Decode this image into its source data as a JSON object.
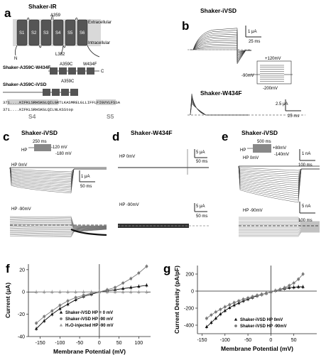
{
  "panels": {
    "a": {
      "letter": "a",
      "title": "Shaker-IR",
      "extracellular": "Extracellular",
      "intracellular": "Intracellular",
      "a359": "A359",
      "l382": "L382",
      "n": "N",
      "c": "C",
      "segments": [
        "S1",
        "S2",
        "S3",
        "S4",
        "S5",
        "S6"
      ],
      "construct1": "Shaker-A359C-W434F",
      "construct1_mut1": "A359C",
      "construct1_mut2": "W434F",
      "construct2": "Shaker-A359C-iVSD",
      "construct2_mut": "A359C",
      "seq1": "371....KIFKLSRHSKGLQILGRTLKASMRELGLLIFFLFIGVVLFSSA",
      "seq2": "371....KIFKLSRHSKGLQILNLKSStop",
      "s4": "S4",
      "s5": "S5"
    },
    "b": {
      "letter": "b",
      "trace1_title": "Shaker-iVSD",
      "trace2_title": "Shaker-W434F",
      "scale1_y": "1 μA",
      "scale1_x": "25 ms",
      "scale2_y": "2.5 μA",
      "scale2_x": "25 ms",
      "proto_top": "+120mV",
      "proto_hold": "-90mV",
      "proto_bottom": "-200mV"
    },
    "c": {
      "letter": "c",
      "title": "Shaker-iVSD",
      "proto_dur": "250 ms",
      "proto_top": "-120 mV",
      "proto_hp": "HP",
      "proto_bottom": "-180 mV",
      "hp1": "HP 0mV",
      "hp2": "HP -90mV",
      "scale_y": "1 μA",
      "scale_x": "50 ms"
    },
    "d": {
      "letter": "d",
      "title": "Shaker-W434F",
      "hp1": "HP 0mV",
      "hp2": "HP -90mV",
      "scale_y1": "5 μA",
      "scale_x1": "50 ms",
      "scale_y2": "5 μA",
      "scale_x2": "50 ms"
    },
    "e": {
      "letter": "e",
      "title": "Shaker-iVSD",
      "proto_dur": "500 ms",
      "proto_top": "+80mV",
      "proto_hp": "HP",
      "proto_bottom": "-140mV",
      "hp1": "HP 0mV",
      "hp2": "HP -90mV",
      "scale_y1": "1 nA",
      "scale_x1": "100 ms",
      "scale_y2": "5 nA",
      "scale_x2": "100 ms"
    }
  },
  "chart_data": [
    {
      "id": "f",
      "letter": "f",
      "type": "line",
      "xlabel": "Membrane Potential (mV)",
      "ylabel": "Current (μA)",
      "xlim": [
        -180,
        130
      ],
      "ylim": [
        -40,
        25
      ],
      "xticks": [
        -150,
        -100,
        -50,
        0,
        50,
        100
      ],
      "yticks": [
        -40,
        -20,
        0,
        20
      ],
      "legend": [
        "Shaker-iVSD    HP = 0 mV",
        "Shaker-iVSD    HP -90 mV",
        "H₂O-injected  HP -90 mV"
      ],
      "series": [
        {
          "name": "Shaker-iVSD    HP = 0 mV",
          "color": "#111111",
          "marker": "triangle-up",
          "x": [
            -160,
            -140,
            -120,
            -100,
            -80,
            -60,
            -40,
            -20,
            0,
            20,
            40,
            60,
            80,
            100,
            120
          ],
          "y": [
            -33,
            -26,
            -20,
            -15,
            -11,
            -7,
            -4,
            -2,
            0,
            1,
            2,
            3,
            4,
            5,
            6
          ]
        },
        {
          "name": "Shaker-iVSD    HP -90 mV",
          "color": "#7a7a7a",
          "marker": "circle",
          "x": [
            -160,
            -140,
            -120,
            -100,
            -80,
            -60,
            -40,
            -20,
            0,
            20,
            40,
            60,
            80,
            100,
            120
          ],
          "y": [
            -28,
            -22,
            -17,
            -12,
            -8,
            -5,
            -3,
            -1,
            0,
            2,
            4,
            8,
            12,
            17,
            23
          ]
        },
        {
          "name": "H₂O-injected  HP -90 mV",
          "color": "#9a9a9a",
          "marker": "triangle-up",
          "x": [
            -160,
            -140,
            -120,
            -100,
            -80,
            -60,
            -40,
            -20,
            0,
            20,
            40,
            60,
            80,
            100,
            120
          ],
          "y": [
            0,
            0,
            0,
            0,
            0,
            0,
            0,
            0,
            0,
            0,
            0,
            0,
            0,
            0,
            0
          ]
        }
      ]
    },
    {
      "id": "g",
      "letter": "g",
      "type": "line",
      "xlabel": "Membrane Potential (mV)",
      "ylabel": "Current Density (pA/pF)",
      "xlim": [
        -160,
        100
      ],
      "ylim": [
        -500,
        300
      ],
      "xticks": [
        -150,
        -100,
        -50,
        0,
        50
      ],
      "yticks": [
        -400,
        -200,
        0,
        200
      ],
      "legend": [
        "Shaker-iVSD  HP 0mV",
        "Shaker-iVSD  HP -90mV"
      ],
      "series": [
        {
          "name": "Shaker-iVSD  HP 0mV",
          "color": "#111111",
          "marker": "triangle-up",
          "x": [
            -140,
            -130,
            -120,
            -110,
            -100,
            -90,
            -80,
            -70,
            -60,
            -50,
            -40,
            -30,
            -20,
            -10,
            0,
            10,
            20,
            30,
            40,
            50,
            60,
            70
          ],
          "y": [
            -420,
            -370,
            -320,
            -270,
            -230,
            -195,
            -165,
            -140,
            -115,
            -95,
            -75,
            -55,
            -40,
            -25,
            -10,
            5,
            20,
            30,
            40,
            45,
            50,
            50
          ]
        },
        {
          "name": "Shaker-iVSD  HP -90mV",
          "color": "#7a7a7a",
          "marker": "circle",
          "x": [
            -140,
            -130,
            -120,
            -110,
            -100,
            -90,
            -80,
            -70,
            -60,
            -50,
            -40,
            -30,
            -20,
            -10,
            0,
            10,
            20,
            30,
            40,
            50,
            60,
            70
          ],
          "y": [
            -320,
            -280,
            -245,
            -215,
            -185,
            -160,
            -135,
            -115,
            -95,
            -80,
            -65,
            -50,
            -38,
            -25,
            -12,
            5,
            20,
            40,
            65,
            95,
            140,
            200
          ]
        }
      ]
    }
  ]
}
